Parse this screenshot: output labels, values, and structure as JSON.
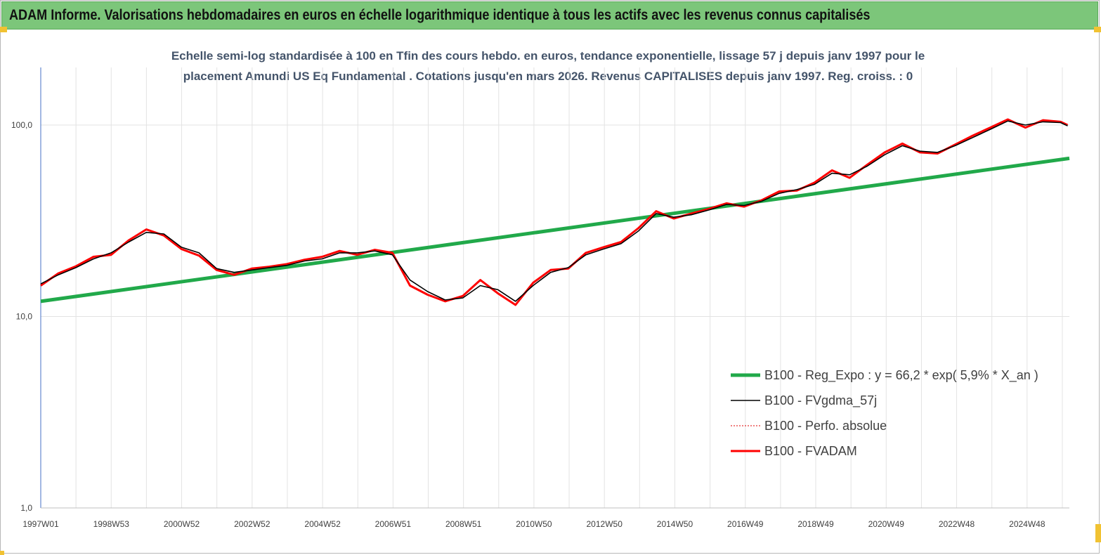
{
  "header": {
    "title": "ADAM Informe. Valorisations hebdomadaires en euros en échelle logarithmique identique à tous les actifs avec les revenus connus capitalisés"
  },
  "colors": {
    "header_bg": "#7cc67a",
    "regression": "#21a94a",
    "moving_average": "#000000",
    "absolute_perf": "#e00000",
    "fvadam": "#ff0000",
    "corner_marks": "#f1c232"
  },
  "chart_data": {
    "type": "line",
    "title_line1": "Echelle semi-log standardisée à 100 en Tfin des cours hebdo. en euros, tendance exponentielle, lissage 57 j depuis janv 1997 pour le",
    "title_line2": "placement Amundi US Eq Fundamental . Cotations jusqu'en mars 2026. Revenus CAPITALISES depuis janv 1997. Reg. croiss. : 0",
    "y_scale": "log",
    "ylim": [
      1,
      180
    ],
    "y_ticks": [
      1,
      10,
      100
    ],
    "y_tick_labels": [
      "1,0",
      "10,0",
      "100,0"
    ],
    "xlim": [
      1997.0,
      2026.25
    ],
    "x_tick_labels": [
      "1997W01",
      "1998W53",
      "2000W52",
      "2002W52",
      "2004W52",
      "2006W51",
      "2008W51",
      "2010W50",
      "2012W50",
      "2014W50",
      "2016W49",
      "2018W49",
      "2020W49",
      "2022W48",
      "2024W48"
    ],
    "grid": "vertical",
    "legend_position": "bottom-right",
    "series": [
      {
        "name": "B100 - Reg_Expo : y = 66,2 * exp( 5,9% *  X_an )",
        "style": "regression",
        "x": [
          1997.0,
          2026.25
        ],
        "values": [
          12.0,
          67.0
        ]
      },
      {
        "name": "B100 - FVgdma_57j",
        "style": "moving_average",
        "x": [
          1997.0,
          1997.5,
          1998.0,
          1998.5,
          1999.0,
          1999.5,
          2000.0,
          2000.5,
          2001.0,
          2001.5,
          2002.0,
          2002.5,
          2003.0,
          2003.5,
          2004.0,
          2004.5,
          2005.0,
          2005.5,
          2006.0,
          2006.5,
          2007.0,
          2007.5,
          2008.0,
          2008.5,
          2009.0,
          2009.5,
          2010.0,
          2010.5,
          2011.0,
          2011.5,
          2012.0,
          2012.5,
          2013.0,
          2013.5,
          2014.0,
          2014.5,
          2015.0,
          2015.5,
          2016.0,
          2016.5,
          2017.0,
          2017.5,
          2018.0,
          2018.5,
          2019.0,
          2019.5,
          2020.0,
          2020.5,
          2021.0,
          2021.5,
          2022.0,
          2022.5,
          2023.0,
          2023.5,
          2024.0,
          2024.5,
          2025.0,
          2025.5,
          2026.0,
          2026.2
        ],
        "values": [
          14.8,
          16.5,
          18.0,
          20.0,
          21.5,
          24.5,
          27.5,
          27.0,
          23.0,
          21.5,
          17.8,
          17.0,
          17.5,
          18.0,
          18.5,
          19.5,
          20.0,
          21.5,
          21.5,
          22.0,
          21.0,
          15.5,
          13.5,
          12.2,
          12.5,
          14.5,
          13.8,
          12.0,
          14.5,
          17.0,
          18.0,
          21.0,
          22.5,
          24.0,
          28.0,
          34.5,
          33.0,
          34.0,
          36.0,
          38.5,
          38.0,
          40.0,
          44.0,
          46.0,
          49.0,
          56.0,
          55.0,
          61.0,
          70.0,
          78.0,
          73.0,
          72.0,
          78.0,
          86.0,
          95.0,
          105.0,
          100.0,
          104.0,
          103.0,
          99.0
        ]
      },
      {
        "name": "B100 - Perfo. absolue",
        "style": "absolute_perf",
        "x": [],
        "values": []
      },
      {
        "name": "B100 - FVADAM",
        "style": "fvadam",
        "x": [
          1997.0,
          1997.5,
          1998.0,
          1998.5,
          1999.0,
          1999.5,
          2000.0,
          2000.5,
          2001.0,
          2001.5,
          2002.0,
          2002.5,
          2003.0,
          2003.5,
          2004.0,
          2004.5,
          2005.0,
          2005.5,
          2006.0,
          2006.5,
          2007.0,
          2007.5,
          2008.0,
          2008.5,
          2009.0,
          2009.5,
          2010.0,
          2010.5,
          2011.0,
          2011.5,
          2012.0,
          2012.5,
          2013.0,
          2013.5,
          2014.0,
          2014.5,
          2015.0,
          2015.5,
          2016.0,
          2016.5,
          2017.0,
          2017.5,
          2018.0,
          2018.5,
          2019.0,
          2019.5,
          2020.0,
          2020.5,
          2021.0,
          2021.5,
          2022.0,
          2022.5,
          2023.0,
          2023.5,
          2024.0,
          2024.5,
          2025.0,
          2025.5,
          2026.0,
          2026.2
        ],
        "values": [
          14.5,
          16.8,
          18.3,
          20.5,
          21.0,
          25.0,
          28.5,
          26.5,
          22.5,
          20.8,
          17.5,
          16.5,
          17.8,
          18.2,
          18.8,
          19.8,
          20.5,
          22.0,
          21.0,
          22.3,
          21.5,
          14.5,
          13.0,
          12.0,
          12.8,
          15.5,
          13.2,
          11.5,
          15.0,
          17.5,
          17.8,
          21.5,
          23.0,
          24.5,
          29.0,
          35.5,
          32.5,
          34.5,
          36.5,
          39.0,
          37.5,
          40.5,
          45.0,
          45.5,
          50.0,
          58.0,
          53.0,
          62.0,
          72.0,
          80.0,
          72.0,
          71.0,
          79.0,
          88.0,
          97.0,
          107.0,
          97.0,
          106.0,
          104.0,
          100.0
        ]
      }
    ]
  }
}
